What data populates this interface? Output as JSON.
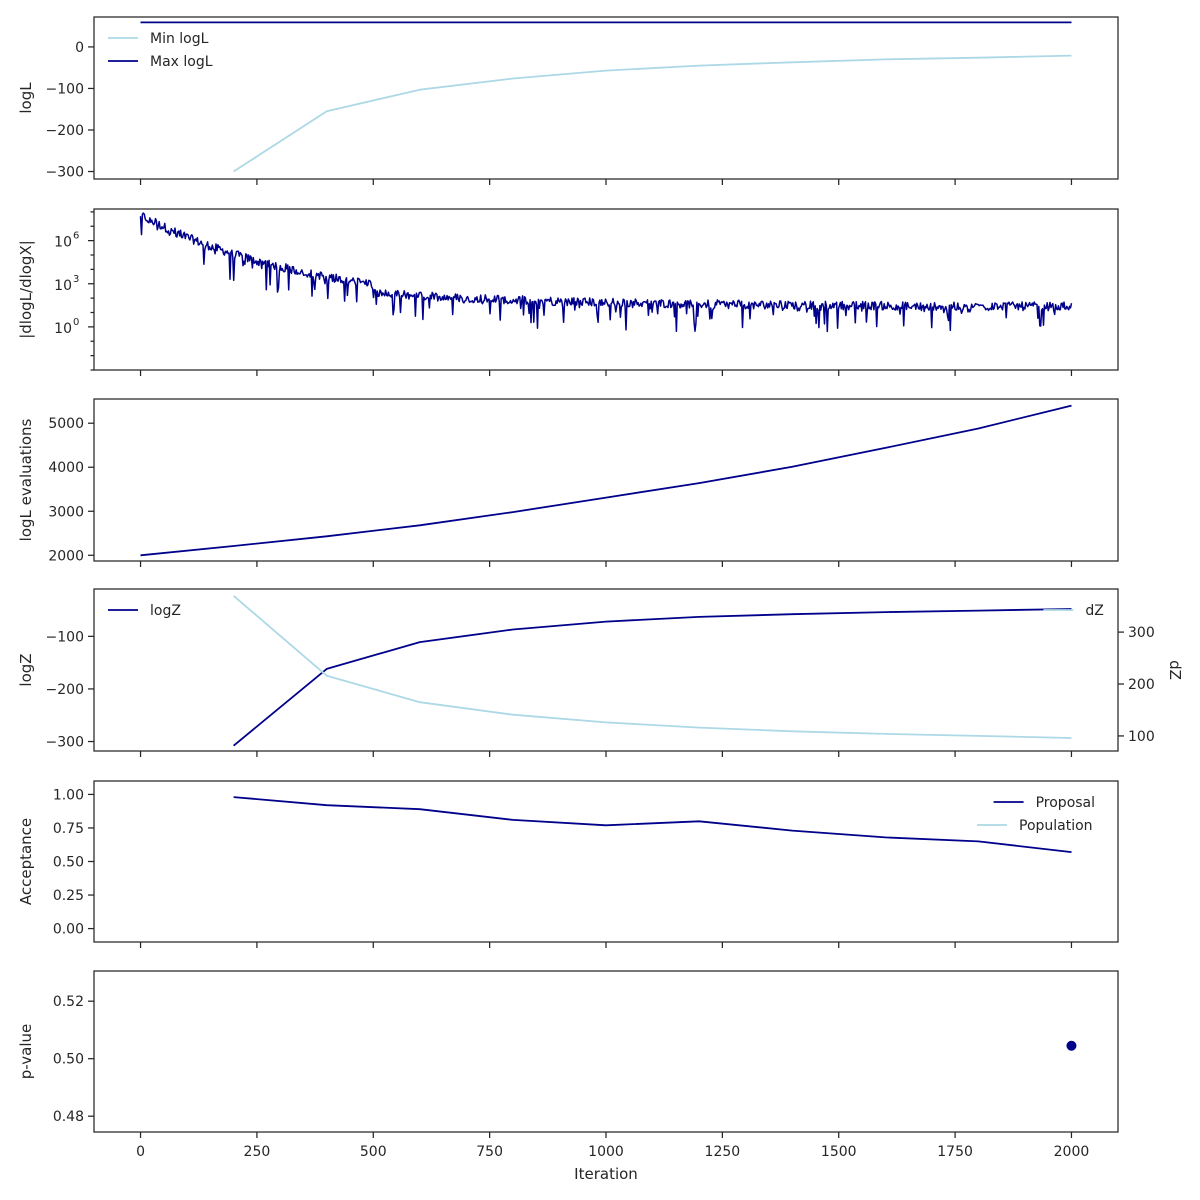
{
  "colors": {
    "dark": "#00008b",
    "light": "#add8e6",
    "axis": "#262626"
  },
  "x_axis": {
    "label": "Iteration",
    "ticks": [
      0,
      250,
      500,
      750,
      1000,
      1250,
      1500,
      1750,
      2000
    ],
    "tick_labels": [
      "0",
      "250",
      "500",
      "750",
      "1000",
      "1250",
      "1500",
      "1750",
      "2000"
    ],
    "range": [
      -100,
      2100
    ]
  },
  "chart_data": [
    {
      "type": "line",
      "ylabel": "logL",
      "ylim": [
        -318,
        72
      ],
      "yticks": [
        0,
        -100,
        -200,
        -300
      ],
      "ytick_labels": [
        "0",
        "−100",
        "−200",
        "−300"
      ],
      "legend": "top-left",
      "series": [
        {
          "name": "Min logL",
          "color": "light",
          "x": [
            200,
            400,
            600,
            800,
            1000,
            1200,
            1400,
            1600,
            1800,
            2000
          ],
          "y": [
            -300,
            -155,
            -103,
            -76,
            -57,
            -45,
            -37,
            -30,
            -26,
            -21
          ]
        },
        {
          "name": "Max logL",
          "color": "dark",
          "x": [
            0,
            2000
          ],
          "y": [
            59,
            59
          ]
        }
      ]
    },
    {
      "type": "line",
      "ylabel": "|dlogL/dlogX|",
      "yscale": "log",
      "ylim_log10": [
        -3.0,
        8.2
      ],
      "yticks_log10": [
        0,
        3,
        6
      ],
      "ytick_labels": [
        "10",
        "10",
        "10"
      ],
      "ytick_exponents": [
        "0",
        "3",
        "6"
      ],
      "series": [
        {
          "name": "",
          "color": "dark",
          "x_start": 0,
          "x_end": 2000,
          "n_points": 1000,
          "decay_log10": {
            "start": 7.7,
            "level_at_500": 2.9,
            "floor": 1.3
          },
          "noise_log10": {
            "upward": 0.3,
            "downward": 1.2
          }
        }
      ]
    },
    {
      "type": "line",
      "ylabel": "logL evaluations",
      "ylim": [
        1870,
        5550
      ],
      "yticks": [
        2000,
        3000,
        4000,
        5000
      ],
      "ytick_labels": [
        "2000",
        "3000",
        "4000",
        "5000"
      ],
      "series": [
        {
          "name": "",
          "color": "dark",
          "x": [
            0,
            200,
            400,
            600,
            800,
            1000,
            1200,
            1400,
            1600,
            1800,
            2000
          ],
          "y": [
            2000,
            2210,
            2430,
            2680,
            2980,
            3310,
            3640,
            4010,
            4440,
            4880,
            5400
          ]
        }
      ]
    },
    {
      "type": "line",
      "ylabel": "logZ",
      "ylim": [
        -318,
        -10
      ],
      "yticks": [
        -100,
        -200,
        -300
      ],
      "ytick_labels": [
        "−100",
        "−200",
        "−300"
      ],
      "legend": "top-left",
      "secondary_axis": {
        "label": "dZ",
        "ylim": [
          71,
          383
        ],
        "yticks": [
          100,
          200,
          300
        ],
        "ytick_labels": [
          "100",
          "200",
          "300"
        ],
        "legend": "top-right"
      },
      "series": [
        {
          "name": "logZ",
          "color": "dark",
          "axis": "left",
          "x": [
            200,
            400,
            600,
            800,
            1000,
            1200,
            1400,
            1600,
            1800,
            2000
          ],
          "y": [
            -308,
            -162,
            -111,
            -87,
            -72,
            -63,
            -58,
            -54,
            -51,
            -48
          ]
        },
        {
          "name": "dZ",
          "color": "light",
          "axis": "right",
          "x": [
            200,
            400,
            600,
            800,
            1000,
            1200,
            1400,
            1600,
            1800,
            2000
          ],
          "y": [
            370,
            216,
            165,
            141,
            126,
            116,
            109,
            104,
            100,
            96
          ]
        }
      ]
    },
    {
      "type": "line",
      "ylabel": "Acceptance",
      "ylim": [
        -0.1,
        1.1
      ],
      "yticks": [
        1.0,
        0.75,
        0.5,
        0.25,
        0.0
      ],
      "ytick_labels": [
        "1.00",
        "0.75",
        "0.50",
        "0.25",
        "0.00"
      ],
      "legend": "top-right",
      "series": [
        {
          "name": "Proposal",
          "color": "dark",
          "x": [
            200,
            400,
            600,
            800,
            1000,
            1200,
            1400,
            1600,
            1800,
            2000
          ],
          "y": [
            0.98,
            0.92,
            0.89,
            0.81,
            0.77,
            0.8,
            0.73,
            0.68,
            0.65,
            0.57
          ]
        },
        {
          "name": "Population",
          "color": "light",
          "x": [],
          "y": []
        }
      ]
    },
    {
      "type": "scatter",
      "ylabel": "p-value",
      "ylim": [
        0.4745,
        0.5305
      ],
      "yticks": [
        0.52,
        0.5,
        0.48
      ],
      "ytick_labels": [
        "0.52",
        "0.50",
        "0.48"
      ],
      "series": [
        {
          "name": "",
          "color": "dark",
          "x": [
            2000
          ],
          "y": [
            0.5045
          ]
        }
      ]
    }
  ]
}
